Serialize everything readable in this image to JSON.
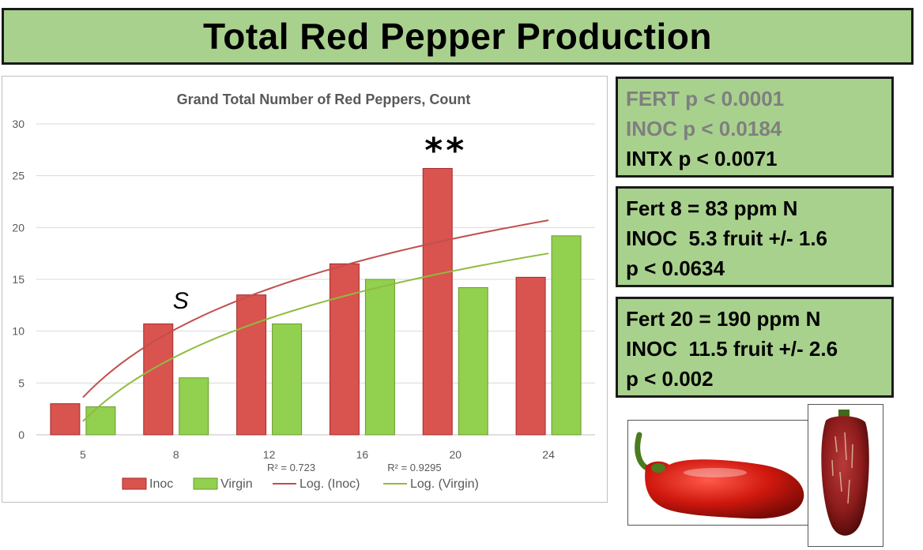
{
  "title": "Total Red Pepper Production",
  "stats": {
    "box1": [
      "FERT p < 0.0001",
      "INOC p < 0.0184",
      "INTX p < 0.0071"
    ],
    "box2": [
      "Fert 8 = 83 ppm N",
      "INOC  5.3 fruit +/- 1.6",
      "p < 0.0634"
    ],
    "box3": [
      "Fert 20 = 190 ppm N",
      "INOC  11.5 fruit +/- 2.6",
      "p < 0.002"
    ]
  },
  "colors": {
    "banner": "#a9d18e",
    "inoc": "#d9534f",
    "virgin": "#92d050",
    "inoc_trend": "#c0504d",
    "virgin_trend": "#8fbc3f"
  },
  "chart_data": {
    "type": "bar",
    "title": "Grand Total Number of Red Peppers, Count",
    "categories": [
      "5",
      "8",
      "12",
      "16",
      "20",
      "24"
    ],
    "series": [
      {
        "name": "Inoc",
        "values": [
          3.0,
          10.7,
          13.5,
          16.5,
          25.7,
          15.2
        ]
      },
      {
        "name": "Virgin",
        "values": [
          2.7,
          5.5,
          10.7,
          15.0,
          14.2,
          19.2
        ]
      }
    ],
    "trendlines": [
      {
        "name": "Log. (Inoc)",
        "type": "logarithmic",
        "start": 3.6,
        "end": 20.7,
        "r2_label": "R² = 0.723"
      },
      {
        "name": "Log. (Virgin)",
        "type": "logarithmic",
        "start": 1.3,
        "end": 17.5,
        "r2_label": "R² = 0.9295"
      }
    ],
    "ylim": [
      0,
      30
    ],
    "yticks": [
      0,
      5,
      10,
      15,
      20,
      25,
      30
    ],
    "grid": true,
    "legend_position": "bottom",
    "annotations": [
      {
        "text": "S",
        "category": "8"
      },
      {
        "text": "**",
        "category": "20"
      }
    ]
  }
}
